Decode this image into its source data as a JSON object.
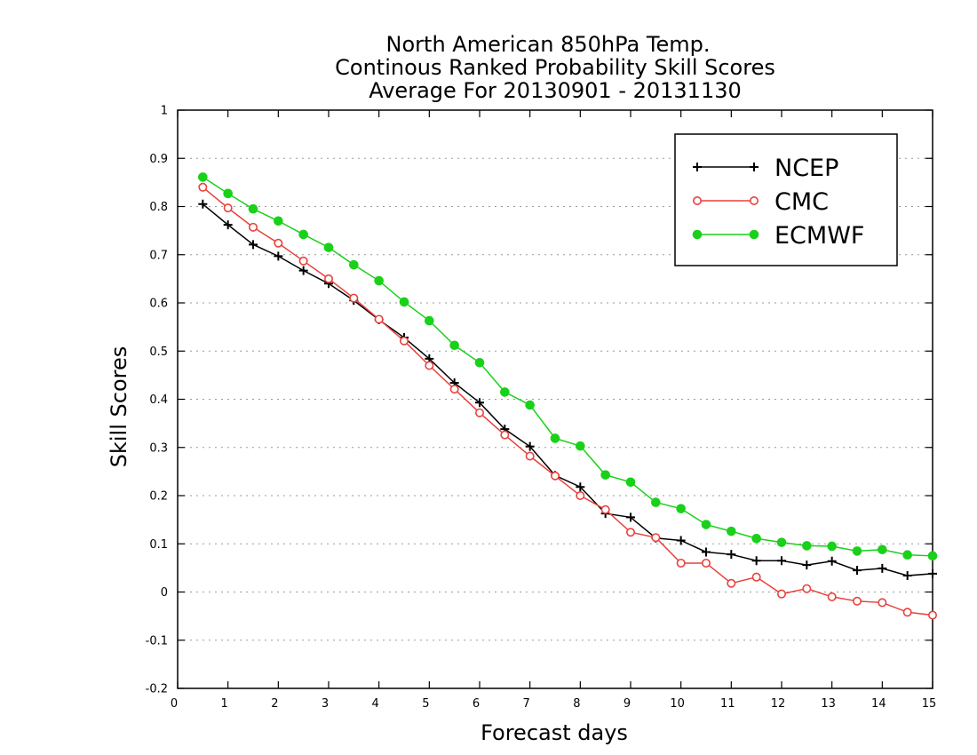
{
  "chart_data": {
    "type": "line",
    "title": [
      "North American 850hPa Temp.",
      "Continous Ranked Probability Skill Scores",
      "Average For 20130901 - 20131130"
    ],
    "xlabel": "Forecast days",
    "ylabel": "Skill Scores",
    "xlim": [
      0,
      15
    ],
    "ylim": [
      -0.2,
      1
    ],
    "x_ticks": [
      0,
      1,
      2,
      3,
      4,
      5,
      6,
      7,
      8,
      9,
      10,
      11,
      12,
      13,
      14,
      15
    ],
    "y_ticks": [
      -0.2,
      -0.1,
      0,
      0.1,
      0.2,
      0.3,
      0.4,
      0.5,
      0.6,
      0.7,
      0.8,
      0.9,
      1
    ],
    "y_tick_labels": [
      "-0.2",
      "-0.1",
      "0",
      "0.1",
      "0.2",
      "0.3",
      "0.4",
      "0.5",
      "0.6",
      "0.7",
      "0.8",
      "0.9",
      "1"
    ],
    "grid": "horizontal dotted",
    "legend_position": "top-right",
    "x": [
      0.5,
      1,
      1.5,
      2,
      2.5,
      3,
      3.5,
      4,
      4.5,
      5,
      5.5,
      6,
      6.5,
      7,
      7.5,
      8,
      8.5,
      9,
      9.5,
      10,
      10.5,
      11,
      11.5,
      12,
      12.5,
      13,
      13.5,
      14,
      14.5,
      15
    ],
    "series": [
      {
        "name": "NCEP",
        "color": "#000000",
        "marker": "plus",
        "values": [
          0.805,
          0.762,
          0.721,
          0.697,
          0.667,
          0.64,
          0.605,
          0.565,
          0.528,
          0.484,
          0.434,
          0.393,
          0.338,
          0.302,
          0.242,
          0.218,
          0.163,
          0.155,
          0.112,
          0.107,
          0.083,
          0.078,
          0.065,
          0.065,
          0.056,
          0.064,
          0.045,
          0.049,
          0.034,
          0.038
        ]
      },
      {
        "name": "CMC",
        "color": "#e8413c",
        "marker": "open-circle",
        "values": [
          0.84,
          0.797,
          0.757,
          0.724,
          0.687,
          0.65,
          0.61,
          0.566,
          0.521,
          0.47,
          0.421,
          0.372,
          0.326,
          0.282,
          0.241,
          0.2,
          0.171,
          0.124,
          0.113,
          0.06,
          0.06,
          0.018,
          0.031,
          -0.004,
          0.007,
          -0.01,
          -0.019,
          -0.022,
          -0.042,
          -0.048
        ]
      },
      {
        "name": "ECMWF",
        "color": "#19d119",
        "marker": "filled-circle",
        "values": [
          0.861,
          0.827,
          0.795,
          0.77,
          0.742,
          0.715,
          0.679,
          0.646,
          0.602,
          0.563,
          0.512,
          0.476,
          0.415,
          0.388,
          0.319,
          0.303,
          0.243,
          0.228,
          0.186,
          0.173,
          0.14,
          0.126,
          0.111,
          0.103,
          0.096,
          0.095,
          0.085,
          0.088,
          0.077,
          0.075
        ]
      }
    ]
  }
}
